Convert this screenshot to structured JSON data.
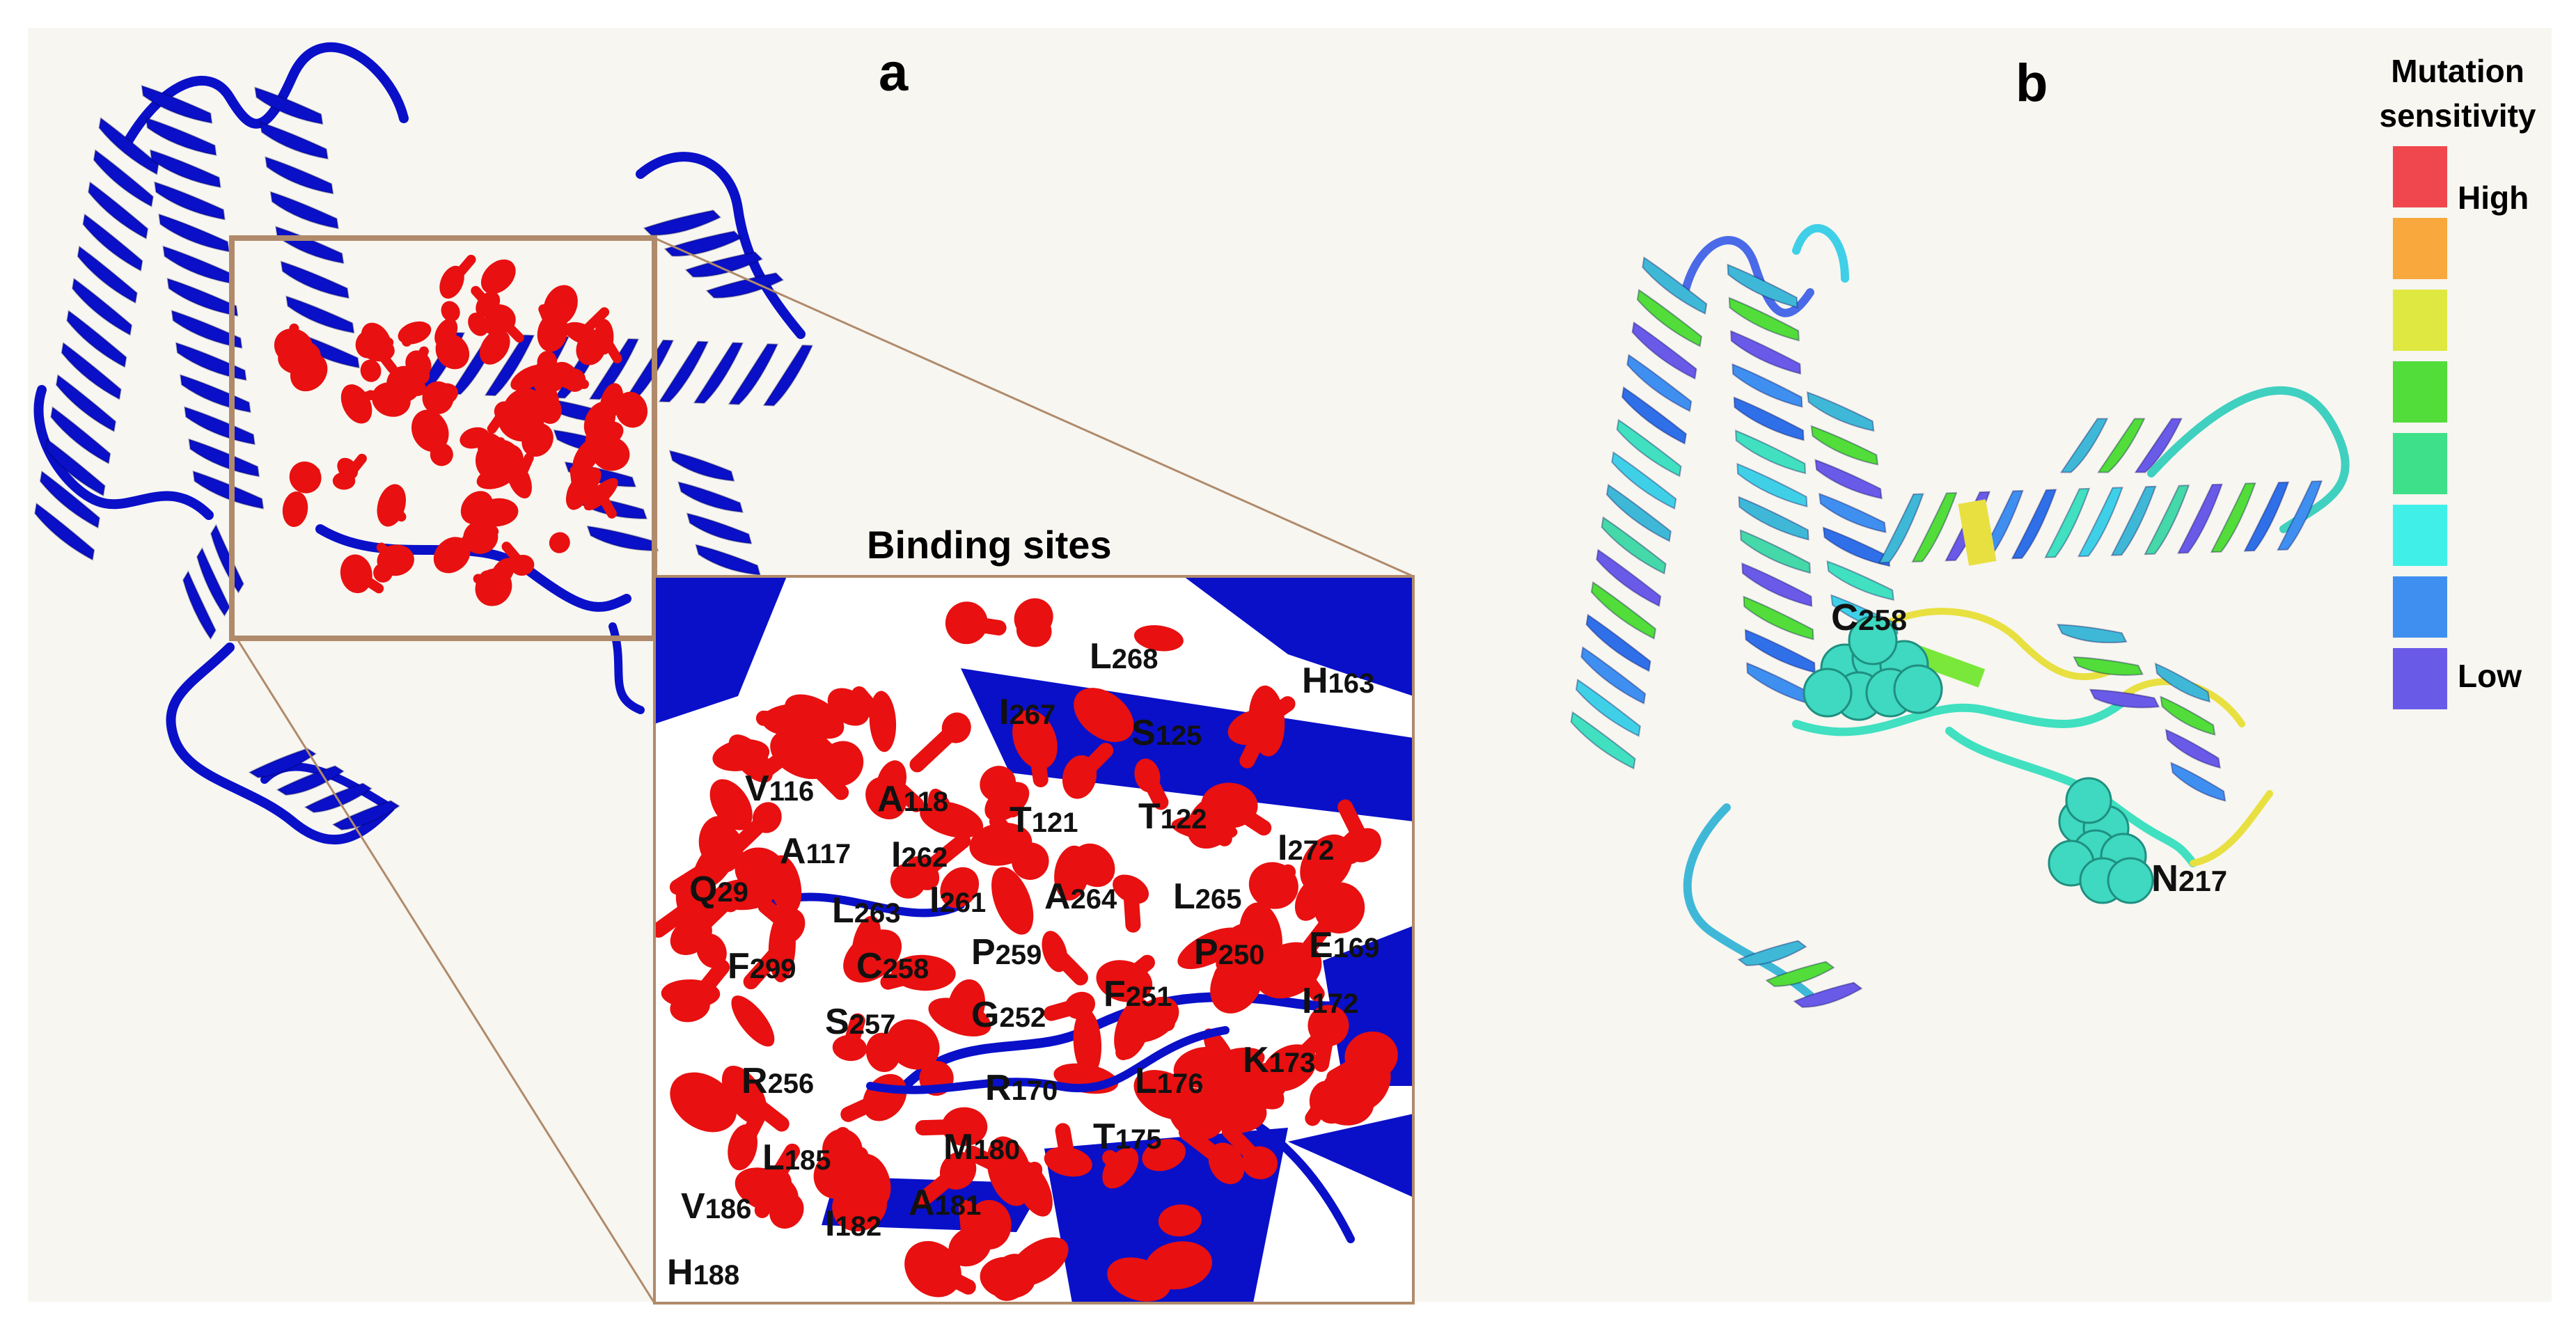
{
  "panel_a": {
    "label": "a",
    "inset_title": "Binding sites",
    "residues": [
      {
        "aa": "L",
        "num": "268"
      },
      {
        "aa": "H",
        "num": "163"
      },
      {
        "aa": "I",
        "num": "267"
      },
      {
        "aa": "S",
        "num": "125"
      },
      {
        "aa": "V",
        "num": "116"
      },
      {
        "aa": "A",
        "num": "118"
      },
      {
        "aa": "T",
        "num": "121"
      },
      {
        "aa": "T",
        "num": "122"
      },
      {
        "aa": "A",
        "num": "117"
      },
      {
        "aa": "I",
        "num": "262"
      },
      {
        "aa": "I",
        "num": "272"
      },
      {
        "aa": "Q",
        "num": "29"
      },
      {
        "aa": "L",
        "num": "263"
      },
      {
        "aa": "I",
        "num": "261"
      },
      {
        "aa": "A",
        "num": "264"
      },
      {
        "aa": "L",
        "num": "265"
      },
      {
        "aa": "F",
        "num": "299"
      },
      {
        "aa": "C",
        "num": "258"
      },
      {
        "aa": "P",
        "num": "259"
      },
      {
        "aa": "P",
        "num": "250"
      },
      {
        "aa": "E",
        "num": "169"
      },
      {
        "aa": "S",
        "num": "257"
      },
      {
        "aa": "G",
        "num": "252"
      },
      {
        "aa": "F",
        "num": "251"
      },
      {
        "aa": "I",
        "num": "172"
      },
      {
        "aa": "R",
        "num": "256"
      },
      {
        "aa": "R",
        "num": "170"
      },
      {
        "aa": "L",
        "num": "176"
      },
      {
        "aa": "K",
        "num": "173"
      },
      {
        "aa": "L",
        "num": "185"
      },
      {
        "aa": "M",
        "num": "180"
      },
      {
        "aa": "T",
        "num": "175"
      },
      {
        "aa": "V",
        "num": "186"
      },
      {
        "aa": "I",
        "num": "182"
      },
      {
        "aa": "A",
        "num": "181"
      },
      {
        "aa": "H",
        "num": "188"
      }
    ]
  },
  "panel_b": {
    "label": "b",
    "residues": [
      {
        "aa": "C",
        "num": "258"
      },
      {
        "aa": "N",
        "num": "217"
      }
    ],
    "legend": {
      "title_line1": "Mutation",
      "title_line2": "sensitivity",
      "high_label": "High",
      "low_label": "Low",
      "swatches": [
        "#f0474e",
        "#f8a83c",
        "#dfe840",
        "#52dd3a",
        "#3fe08a",
        "#40f0e8",
        "#3f8ff0",
        "#6a5ae8"
      ]
    }
  },
  "colors": {
    "background": "#f7f6f1",
    "protein": "#0a10c8",
    "binding": "#e81010",
    "frame": "#b08a6a"
  }
}
